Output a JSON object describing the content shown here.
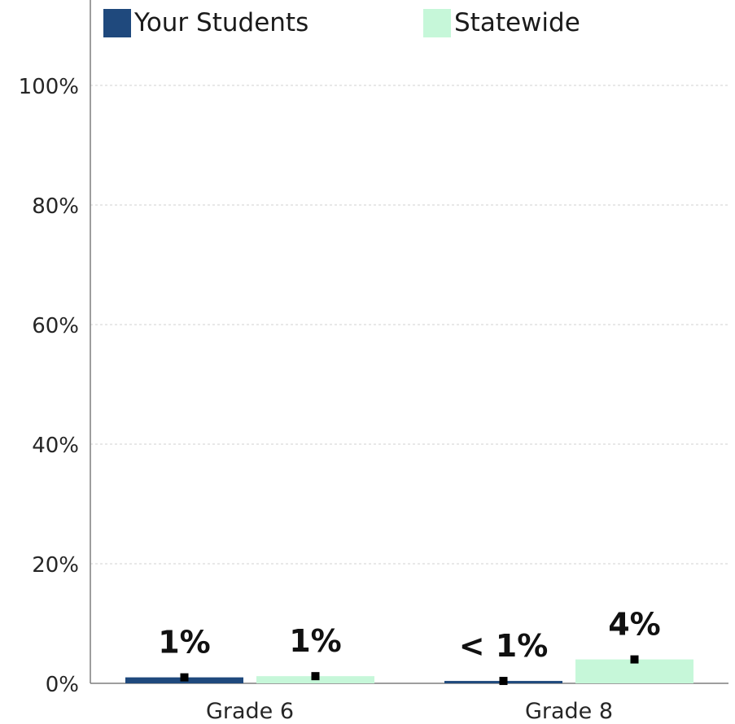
{
  "legend": {
    "series_a": "Your Students",
    "series_b": "Statewide"
  },
  "colors": {
    "series_a": "#1f497d",
    "series_b": "#c6f7d9",
    "marker": "#000000",
    "grid": "#d0d0d0",
    "axis": "#7f7f7f"
  },
  "chart_data": {
    "type": "bar",
    "categories": [
      "Grade 6",
      "Grade 8"
    ],
    "series": [
      {
        "name": "Your Students",
        "values": [
          1,
          0.4
        ],
        "labels": [
          "1%",
          "< 1%"
        ]
      },
      {
        "name": "Statewide",
        "values": [
          1.2,
          4
        ],
        "labels": [
          "1%",
          "4%"
        ]
      }
    ],
    "marker_values": [
      [
        1,
        0.4
      ],
      [
        1.2,
        4
      ]
    ],
    "y_ticks": [
      "0%",
      "20%",
      "40%",
      "60%",
      "80%",
      "100%"
    ],
    "ylim": [
      0,
      100
    ],
    "grid": true,
    "legend_position": "top"
  }
}
